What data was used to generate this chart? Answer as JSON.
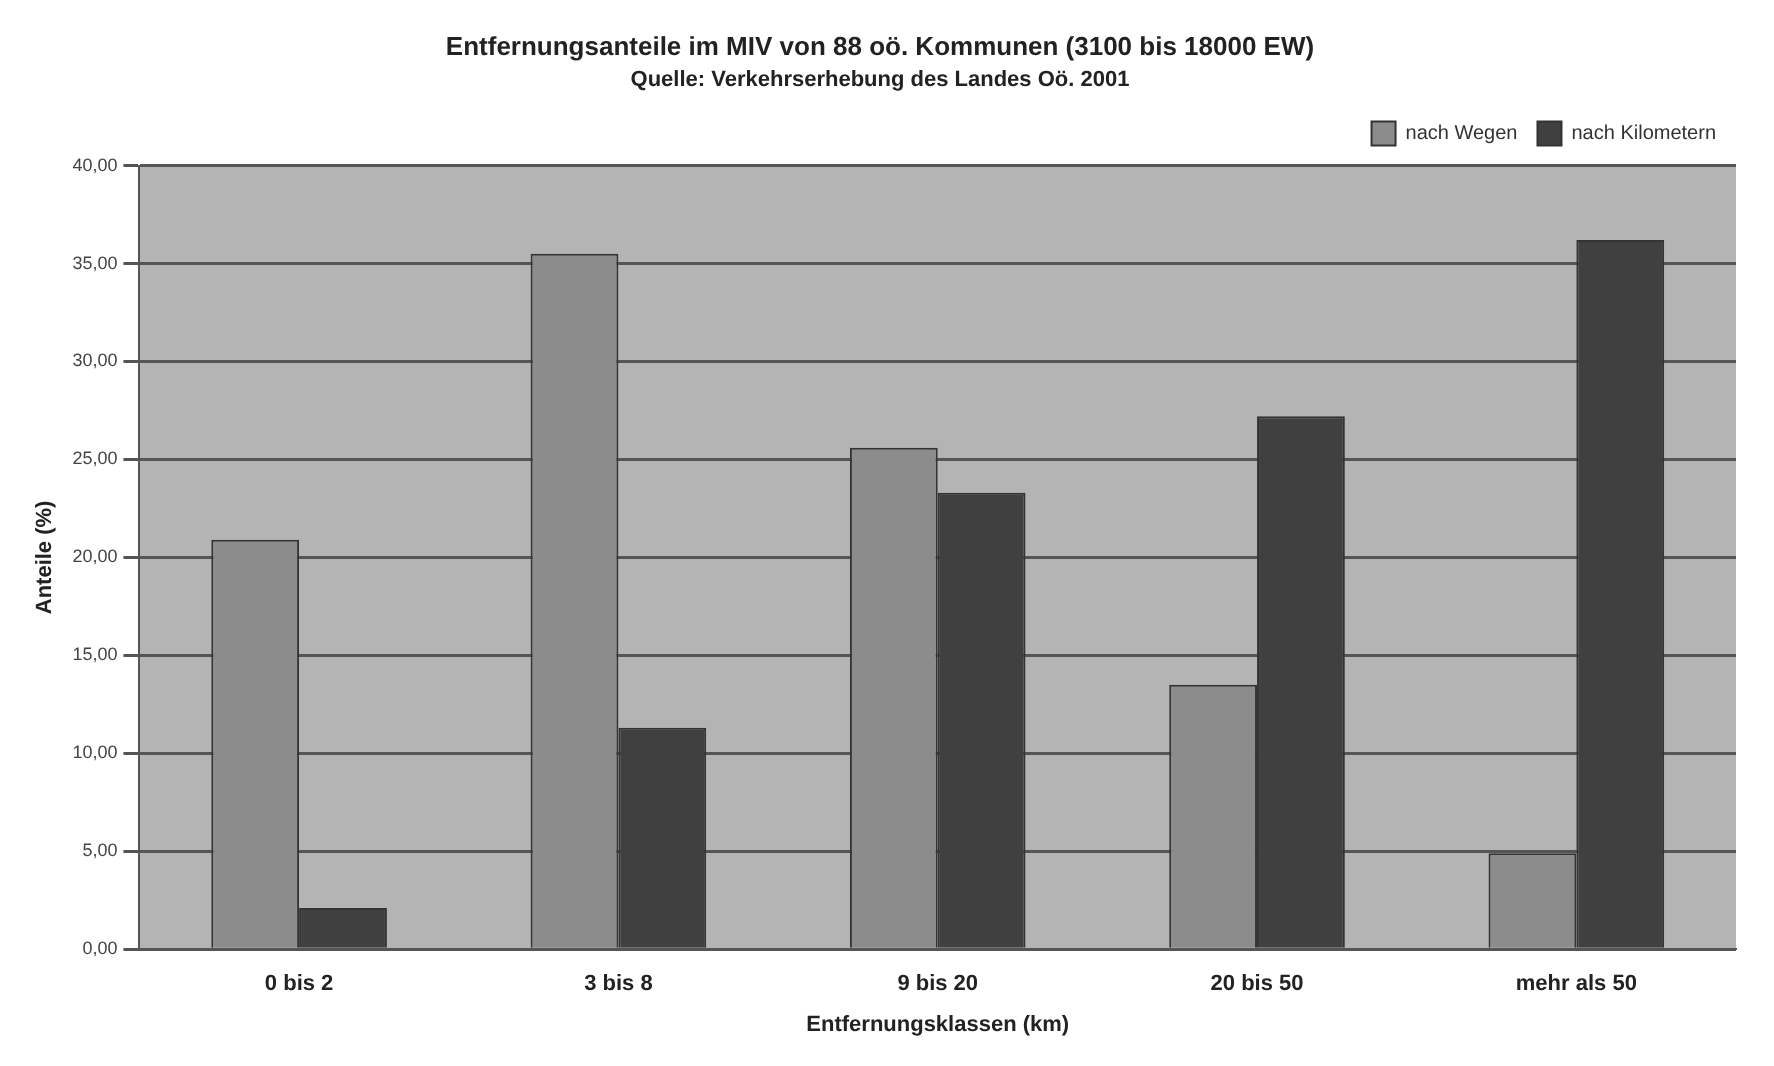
{
  "chart_data": {
    "type": "bar",
    "title": "Entfernungsanteile im MIV von 88 oö. Kommunen (3100 bis 18000 EW)",
    "subtitle": "Quelle: Verkehrserhebung des Landes Oö. 2001",
    "xlabel": "Entfernungsklassen (km)",
    "ylabel": "Anteile (%)",
    "categories": [
      "0 bis 2",
      "3 bis 8",
      "9 bis 20",
      "20 bis 50",
      "mehr als 50"
    ],
    "series": [
      {
        "name": "nach Wegen",
        "color": "#8c8c8c",
        "values": [
          20.9,
          35.5,
          25.6,
          13.5,
          4.9
        ]
      },
      {
        "name": "nach Kilometern",
        "color": "#404040",
        "values": [
          2.1,
          11.3,
          23.3,
          27.2,
          36.2
        ]
      }
    ],
    "ylim": [
      0,
      40
    ],
    "yticks": [
      {
        "value": 0,
        "label": "0,00"
      },
      {
        "value": 5,
        "label": "5,00"
      },
      {
        "value": 10,
        "label": "10,00"
      },
      {
        "value": 15,
        "label": "15,00"
      },
      {
        "value": 20,
        "label": "20,00"
      },
      {
        "value": 25,
        "label": "25,00"
      },
      {
        "value": 30,
        "label": "30,00"
      },
      {
        "value": 35,
        "label": "35,00"
      },
      {
        "value": 40,
        "label": "40,00"
      }
    ],
    "grid": "y",
    "legend": "top right"
  }
}
